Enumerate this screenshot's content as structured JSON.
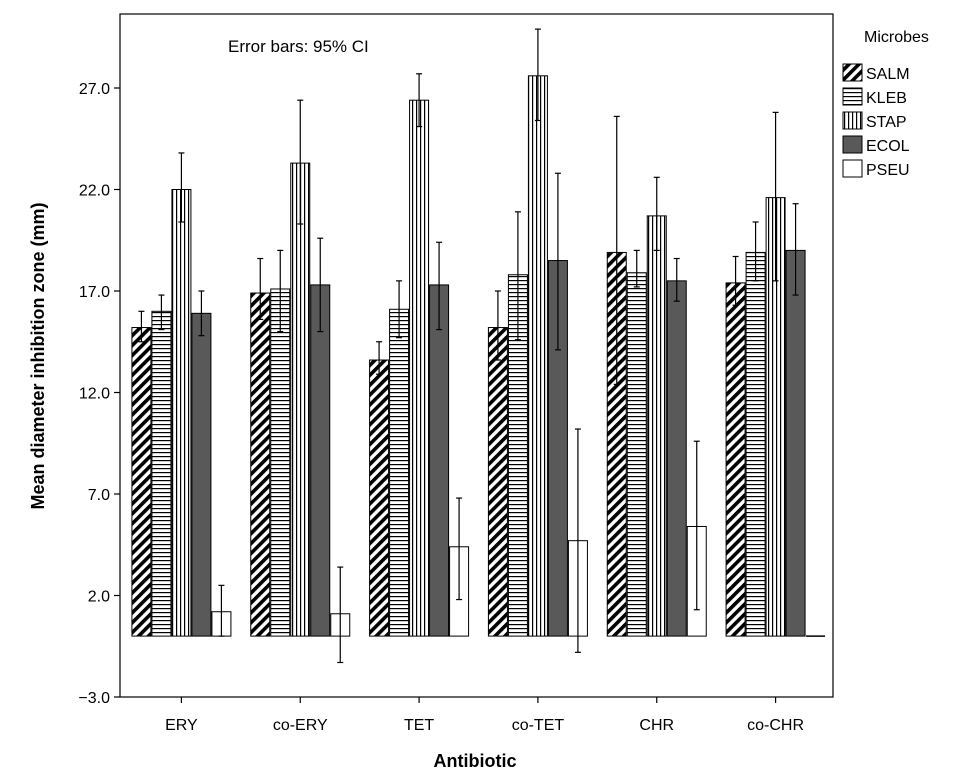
{
  "chart_data": {
    "type": "bar",
    "annotation": "Error bars: 95% CI",
    "xlabel": "Antibiotic",
    "ylabel": "Mean diameter inhibition zone (mm)",
    "ylim": [
      -3.0,
      30.0
    ],
    "yticks": [
      "-3.0",
      "2.0",
      "7.0",
      "12.0",
      "17.0",
      "22.0",
      "27.0"
    ],
    "legend_title": "Microbes",
    "legend_position": "right",
    "categories": [
      "ERY",
      "co-ERY",
      "TET",
      "co-TET",
      "CHR",
      "co-CHR"
    ],
    "series": [
      {
        "name": "SALM",
        "pattern": "diagonal",
        "values": [
          15.2,
          16.9,
          13.6,
          15.2,
          18.9,
          17.4
        ],
        "ci_low": [
          14.5,
          15.6,
          12.9,
          13.6,
          12.4,
          16.3
        ],
        "ci_high": [
          16.0,
          18.6,
          14.5,
          17.0,
          25.6,
          18.7
        ]
      },
      {
        "name": "KLEB",
        "pattern": "horizontal",
        "values": [
          16.0,
          17.1,
          16.1,
          17.8,
          17.9,
          18.9
        ],
        "ci_low": [
          15.1,
          15.0,
          14.7,
          14.6,
          17.2,
          17.5
        ],
        "ci_high": [
          16.8,
          19.0,
          17.5,
          20.9,
          19.0,
          20.4
        ]
      },
      {
        "name": "STAP",
        "pattern": "vertical",
        "values": [
          22.0,
          23.3,
          26.4,
          27.6,
          20.7,
          21.6
        ],
        "ci_low": [
          20.4,
          20.3,
          25.1,
          25.4,
          19.0,
          17.5
        ],
        "ci_high": [
          23.8,
          26.4,
          27.7,
          29.9,
          22.6,
          25.8
        ]
      },
      {
        "name": "ECOL",
        "pattern": "solid",
        "values": [
          15.9,
          17.3,
          17.3,
          18.5,
          17.5,
          19.0
        ],
        "ci_low": [
          14.8,
          15.0,
          15.1,
          14.1,
          16.5,
          16.8
        ],
        "ci_high": [
          17.0,
          19.6,
          19.4,
          22.8,
          18.6,
          21.3
        ]
      },
      {
        "name": "PSEU",
        "pattern": "white",
        "values": [
          1.2,
          1.1,
          4.4,
          4.7,
          5.4,
          0.0
        ],
        "ci_low": [
          0.0,
          -1.3,
          1.8,
          -0.8,
          1.3,
          0.0
        ],
        "ci_high": [
          2.5,
          3.4,
          6.8,
          10.2,
          9.6,
          0.0
        ]
      }
    ]
  }
}
